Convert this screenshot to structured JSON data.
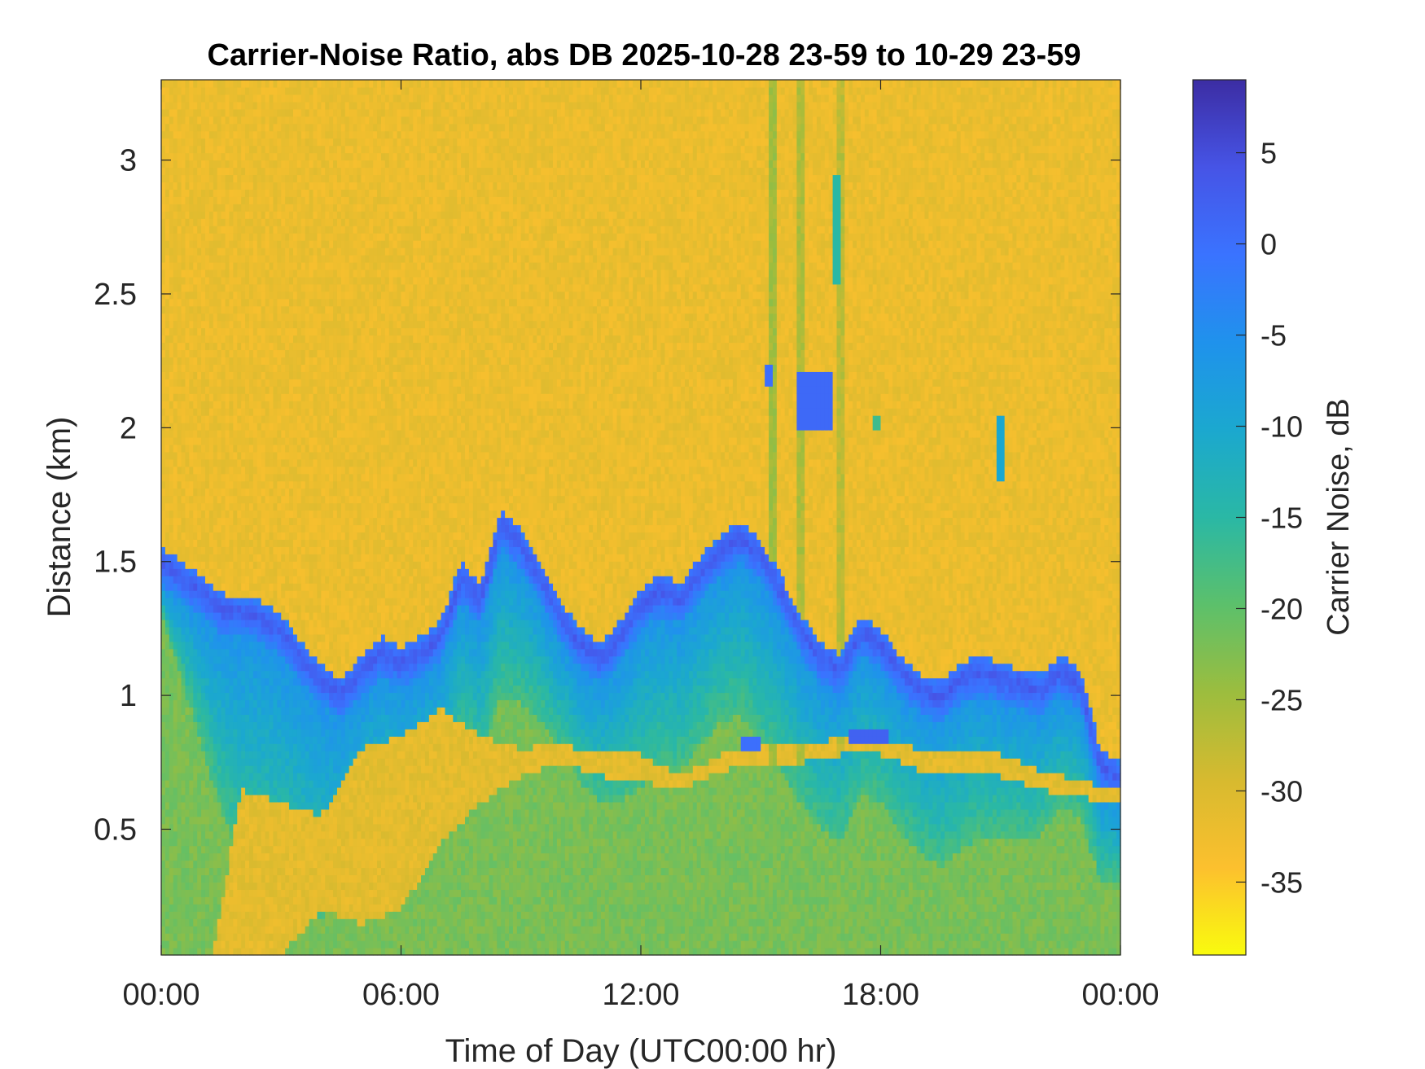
{
  "chart_data": {
    "type": "heatmap",
    "title": "Carrier-Noise Ratio, abs DB 2025-10-28 23-59 to 10-29 23-59",
    "xlabel": "Time of Day (UTC00:00 hr)",
    "ylabel": "Distance (km)",
    "colorbar_label": "Carrier Noise, dB",
    "xlim_hours": [
      0,
      24
    ],
    "ylim_km": [
      0.03,
      3.3
    ],
    "clim_db": [
      -39,
      9
    ],
    "x_ticks": [
      {
        "value": 0,
        "label": "00:00"
      },
      {
        "value": 6,
        "label": "06:00"
      },
      {
        "value": 12,
        "label": "12:00"
      },
      {
        "value": 18,
        "label": "18:00"
      },
      {
        "value": 24,
        "label": "00:00"
      }
    ],
    "y_ticks": [
      {
        "value": 0.5,
        "label": "0.5"
      },
      {
        "value": 1.0,
        "label": "1"
      },
      {
        "value": 1.5,
        "label": "1.5"
      },
      {
        "value": 2.0,
        "label": "2"
      },
      {
        "value": 2.5,
        "label": "2.5"
      },
      {
        "value": 3.0,
        "label": "3"
      }
    ],
    "colorbar_ticks": [
      {
        "value": 5,
        "label": "5"
      },
      {
        "value": 0,
        "label": "0"
      },
      {
        "value": -5,
        "label": "-5"
      },
      {
        "value": -10,
        "label": "-10"
      },
      {
        "value": -15,
        "label": "-15"
      },
      {
        "value": -20,
        "label": "-20"
      },
      {
        "value": -25,
        "label": "-25"
      },
      {
        "value": -30,
        "label": "-30"
      },
      {
        "value": -35,
        "label": "-35"
      }
    ],
    "colormap": [
      "#f9fb0e",
      "#fcc02e",
      "#d7ba2f",
      "#9cbd3e",
      "#5cc06b",
      "#2ab8a5",
      "#1ba8cf",
      "#1f92ec",
      "#3a73ff",
      "#4654e6",
      "#3c2da3"
    ],
    "background_db": -32,
    "lower_layer_db": -22,
    "peak_db": 3,
    "layer_top": {
      "hours": [
        0,
        0.5,
        1,
        1.5,
        2,
        2.5,
        3,
        3.5,
        4,
        4.5,
        5,
        5.5,
        6,
        6.5,
        7,
        7.5,
        8,
        8.5,
        9,
        9.5,
        10,
        10.5,
        11,
        11.5,
        12,
        12.5,
        13,
        13.5,
        14,
        14.5,
        15,
        15.5,
        16,
        16.5,
        17,
        17.5,
        18,
        18.5,
        19,
        19.5,
        20,
        20.5,
        21,
        21.5,
        22,
        22.5,
        23,
        23.5,
        24
      ],
      "km": [
        1.56,
        1.5,
        1.45,
        1.38,
        1.37,
        1.35,
        1.3,
        1.2,
        1.12,
        1.06,
        1.15,
        1.22,
        1.18,
        1.22,
        1.28,
        1.5,
        1.42,
        1.7,
        1.62,
        1.5,
        1.35,
        1.25,
        1.2,
        1.28,
        1.4,
        1.45,
        1.42,
        1.52,
        1.6,
        1.65,
        1.58,
        1.45,
        1.3,
        1.2,
        1.15,
        1.3,
        1.25,
        1.15,
        1.08,
        1.05,
        1.12,
        1.15,
        1.12,
        1.1,
        1.08,
        1.15,
        1.1,
        0.8,
        0.75
      ]
    },
    "layer_depth_km": {
      "hours": [
        0,
        2,
        4,
        4.8,
        6,
        7.5,
        8.5,
        10,
        11,
        12,
        13,
        14,
        15,
        16,
        17,
        18,
        20,
        22,
        23,
        24
      ],
      "km": [
        0.1,
        0.85,
        0.8,
        0.65,
        0.55,
        0.5,
        0.55,
        0.4,
        0.45,
        0.6,
        0.55,
        0.55,
        0.6,
        0.55,
        0.55,
        0.5,
        0.55,
        0.45,
        0.4,
        0.3
      ]
    },
    "clear_gap": {
      "hours": [
        0.9,
        1.3,
        2,
        3,
        4,
        5,
        6,
        7,
        8,
        9,
        10,
        11,
        12,
        13,
        14,
        15,
        16,
        17,
        18,
        19,
        20,
        21,
        22,
        23,
        24
      ],
      "top_km": [
        0.03,
        0.03,
        0.65,
        0.6,
        0.55,
        0.8,
        0.85,
        0.95,
        0.85,
        0.8,
        0.82,
        0.78,
        0.78,
        0.7,
        0.78,
        0.82,
        0.82,
        0.84,
        0.84,
        0.8,
        0.78,
        0.78,
        0.72,
        0.68,
        0.65
      ],
      "bottom_km": [
        0.03,
        0.03,
        0.03,
        0.03,
        0.2,
        0.15,
        0.2,
        0.45,
        0.6,
        0.7,
        0.75,
        0.7,
        0.68,
        0.65,
        0.72,
        0.75,
        0.75,
        0.78,
        0.78,
        0.72,
        0.7,
        0.7,
        0.65,
        0.62,
        0.6
      ]
    },
    "streaks": [
      {
        "hours": [
          15.2,
          15.45
        ],
        "db": -25
      },
      {
        "hours": [
          15.95,
          16.1
        ],
        "db": -26
      },
      {
        "hours": [
          16.95,
          17.05
        ],
        "db": -27
      }
    ],
    "patches": [
      {
        "hours": [
          15.15,
          15.3
        ],
        "km": [
          2.15,
          2.25
        ],
        "db": 0
      },
      {
        "hours": [
          15.95,
          16.8
        ],
        "km": [
          2.0,
          2.2
        ],
        "db": 1
      },
      {
        "hours": [
          16.8,
          16.95
        ],
        "km": [
          2.55,
          2.95
        ],
        "db": -15
      },
      {
        "hours": [
          17.85,
          18.0
        ],
        "km": [
          1.98,
          2.05
        ],
        "db": -17
      },
      {
        "hours": [
          20.95,
          21.1
        ],
        "km": [
          1.8,
          2.05
        ],
        "db": -10
      },
      {
        "hours": [
          17.2,
          18.2
        ],
        "km": [
          0.82,
          0.88
        ],
        "db": 2
      },
      {
        "hours": [
          14.5,
          15.0
        ],
        "km": [
          0.8,
          0.85
        ],
        "db": 0
      }
    ]
  }
}
